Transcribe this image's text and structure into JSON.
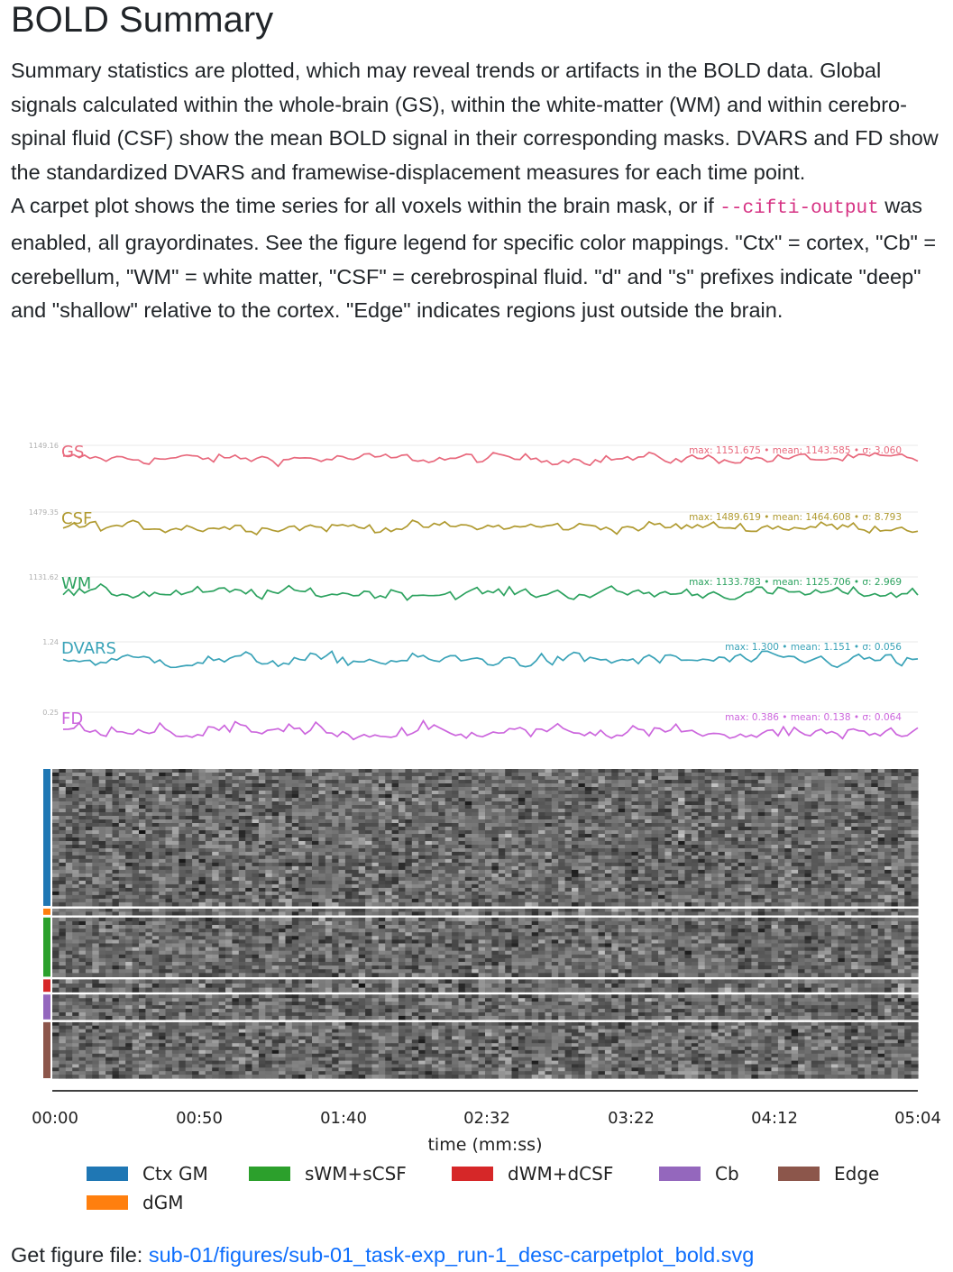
{
  "header": {
    "title": "BOLD Summary"
  },
  "description": {
    "p1": "Summary statistics are plotted, which may reveal trends or artifacts in the BOLD data. Global signals calculated within the whole-brain (GS), within the white-matter (WM) and within cerebro-spinal fluid (CSF) show the mean BOLD signal in their corresponding masks. DVARS and FD show the standardized DVARS and framewise-displacement measures for each time point.",
    "p2_before": "A carpet plot shows the time series for all voxels within the brain mask, or if ",
    "p2_code": "--cifti-output",
    "p2_after": " was enabled, all grayordinates. See the figure legend for specific color mappings. \"Ctx\" = cortex, \"Cb\" = cerebellum, \"WM\" = white matter, \"CSF\" = cerebrospinal fluid. \"d\" and \"s\" prefixes indicate \"deep\" and \"shallow\" relative to the cortex. \"Edge\" indicates regions just outside the brain."
  },
  "chart_data": {
    "type": "line",
    "xlabel": "time (mm:ss)",
    "xticks": [
      "00:00",
      "00:50",
      "01:40",
      "02:32",
      "03:22",
      "04:12",
      "05:04"
    ],
    "series": [
      {
        "name": "GS",
        "color": "#e8697d",
        "max": 1151.675,
        "mean": 1143.585,
        "sd": 3.06,
        "ymax_label": "1149.16",
        "stats": "max: 1151.675 • mean: 1143.585 • σ: 3.060"
      },
      {
        "name": "CSF",
        "color": "#b09a30",
        "max": 1489.619,
        "mean": 1464.608,
        "sd": 8.793,
        "ymax_label": "1479.35",
        "stats": "max: 1489.619 • mean: 1464.608 • σ: 8.793"
      },
      {
        "name": "WM",
        "color": "#2ca25f",
        "max": 1133.783,
        "mean": 1125.706,
        "sd": 2.969,
        "ymax_label": "1131.62",
        "stats": "max: 1133.783 • mean: 1125.706 • σ: 2.969"
      },
      {
        "name": "DVARS",
        "color": "#3aa3b8",
        "max": 1.3,
        "mean": 1.151,
        "sd": 0.056,
        "ymax_label": "1.24",
        "stats": "max: 1.300 • mean: 1.151 • σ: 0.056"
      },
      {
        "name": "FD",
        "color": "#cc66dd",
        "max": 0.386,
        "mean": 0.138,
        "sd": 0.064,
        "ymax_label": "0.25",
        "stats": "max: 0.386 • mean: 0.138 • σ: 0.064"
      }
    ],
    "carpet": {
      "type": "heatmap",
      "segments": [
        {
          "label": "Ctx GM",
          "color": "#1f77b4",
          "weight": 44
        },
        {
          "label": "dGM",
          "color": "#ff7f0e",
          "weight": 2
        },
        {
          "label": "sWM+sCSF",
          "color": "#2ca02c",
          "weight": 19
        },
        {
          "label": "dWM+dCSF",
          "color": "#d62728",
          "weight": 4
        },
        {
          "label": "Cb",
          "color": "#9467bd",
          "weight": 8
        },
        {
          "label": "Edge",
          "color": "#8c564b",
          "weight": 18
        }
      ]
    },
    "legend": [
      {
        "label": "Ctx GM",
        "color": "#1f77b4"
      },
      {
        "label": "sWM+sCSF",
        "color": "#2ca02c"
      },
      {
        "label": "dWM+dCSF",
        "color": "#d62728"
      },
      {
        "label": "Cb",
        "color": "#9467bd"
      },
      {
        "label": "Edge",
        "color": "#8c564b"
      },
      {
        "label": "dGM",
        "color": "#ff7f0e"
      }
    ]
  },
  "footer": {
    "prefix": "Get figure file: ",
    "link_text": "sub-01/figures/sub-01_task-exp_run-1_desc-carpetplot_bold.svg"
  }
}
